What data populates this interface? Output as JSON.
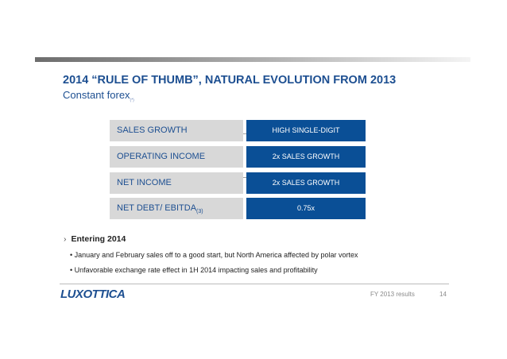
{
  "title": "2014 “RULE OF THUMB”, NATURAL EVOLUTION FROM 2013",
  "subtitle": "Constant forex",
  "subtitle_note": "(*)",
  "rows": [
    {
      "label": "SALES GROWTH",
      "value": "HIGH SINGLE-DIGIT"
    },
    {
      "label": "OPERATING INCOME",
      "value": "2x SALES GROWTH"
    },
    {
      "label": "NET INCOME",
      "value": "2x SALES GROWTH"
    },
    {
      "label": "NET DEBT/ EBITDA",
      "label_note": "(3)",
      "value": "0.75x"
    }
  ],
  "bullet_marker": "›",
  "bullet_title": "Entering 2014",
  "sub_bullets": [
    "• January and February sales off to a good start, but North America affected by polar vortex",
    "• Unfavorable exchange rate effect in 1H 2014 impacting sales and profitability"
  ],
  "logo_text": "LUXOTTICA",
  "footer_label": "FY 2013 results",
  "page_number": "14",
  "colors": {
    "accent": "#1d4f91",
    "value_box": "#0a4f96",
    "label_box": "#d8d8d8"
  }
}
